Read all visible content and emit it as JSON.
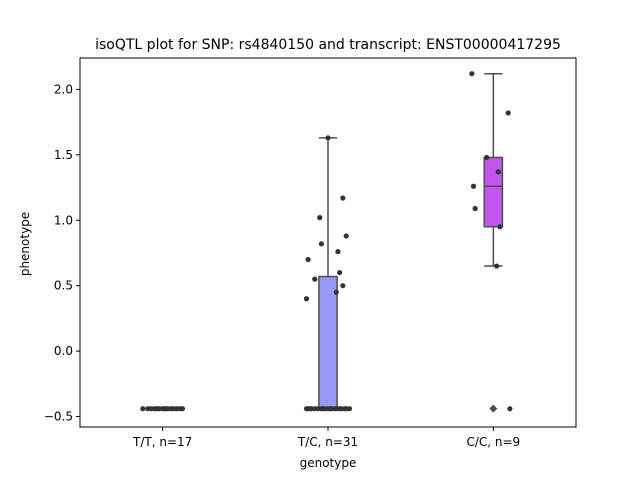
{
  "chart_data": {
    "type": "box",
    "title": "isoQTL plot for SNP: rs4840150 and transcript: ENST00000417295",
    "xlabel": "genotype",
    "ylabel": "phenotype",
    "ylim": [
      -0.58,
      2.24
    ],
    "yticks": [
      -0.5,
      0.0,
      0.5,
      1.0,
      1.5,
      2.0
    ],
    "ytick_labels": [
      "−0.5",
      "0.0",
      "0.5",
      "1.0",
      "1.5",
      "2.0"
    ],
    "grid": false,
    "legend": "none",
    "categories": [
      "T/T, n=17",
      "T/C, n=31",
      "C/C, n=9"
    ],
    "colors": {
      "box": [
        "#9999ff",
        "#9999f7",
        "#c056ee"
      ],
      "line": "#4d4d4d",
      "point": "#333333"
    },
    "groups": [
      {
        "label": "T/T, n=17",
        "q1": -0.44,
        "median": -0.44,
        "q3": -0.44,
        "whisker_low": -0.44,
        "whisker_high": -0.44,
        "outliers": [],
        "points": [
          {
            "x": -0.12,
            "y": -0.44
          },
          {
            "x": -0.09,
            "y": -0.44
          },
          {
            "x": -0.07,
            "y": -0.44
          },
          {
            "x": -0.05,
            "y": -0.44
          },
          {
            "x": -0.04,
            "y": -0.44
          },
          {
            "x": -0.03,
            "y": -0.44
          },
          {
            "x": -0.02,
            "y": -0.44
          },
          {
            "x": 0.0,
            "y": -0.44
          },
          {
            "x": 0.01,
            "y": -0.44
          },
          {
            "x": 0.02,
            "y": -0.44
          },
          {
            "x": 0.03,
            "y": -0.44
          },
          {
            "x": 0.05,
            "y": -0.44
          },
          {
            "x": 0.06,
            "y": -0.44
          },
          {
            "x": 0.08,
            "y": -0.44
          },
          {
            "x": 0.09,
            "y": -0.44
          },
          {
            "x": 0.11,
            "y": -0.44
          },
          {
            "x": 0.12,
            "y": -0.44
          }
        ]
      },
      {
        "label": "T/C, n=31",
        "q1": -0.44,
        "median": -0.44,
        "q3": 0.57,
        "whisker_low": -0.44,
        "whisker_high": 1.63,
        "outliers": [],
        "points": [
          {
            "x": 0.0,
            "y": 1.63
          },
          {
            "x": 0.09,
            "y": 1.17
          },
          {
            "x": -0.05,
            "y": 1.02
          },
          {
            "x": 0.11,
            "y": 0.88
          },
          {
            "x": -0.04,
            "y": 0.82
          },
          {
            "x": 0.06,
            "y": 0.76
          },
          {
            "x": -0.12,
            "y": 0.7
          },
          {
            "x": 0.07,
            "y": 0.6
          },
          {
            "x": -0.08,
            "y": 0.55
          },
          {
            "x": 0.09,
            "y": 0.5
          },
          {
            "x": 0.05,
            "y": 0.45
          },
          {
            "x": -0.13,
            "y": 0.4
          },
          {
            "x": -0.13,
            "y": -0.44
          },
          {
            "x": -0.12,
            "y": -0.44
          },
          {
            "x": -0.11,
            "y": -0.44
          },
          {
            "x": -0.1,
            "y": -0.44
          },
          {
            "x": -0.08,
            "y": -0.44
          },
          {
            "x": -0.06,
            "y": -0.44
          },
          {
            "x": -0.04,
            "y": -0.44
          },
          {
            "x": -0.03,
            "y": -0.44
          },
          {
            "x": -0.02,
            "y": -0.44
          },
          {
            "x": 0.0,
            "y": -0.44
          },
          {
            "x": 0.01,
            "y": -0.44
          },
          {
            "x": 0.02,
            "y": -0.44
          },
          {
            "x": 0.04,
            "y": -0.44
          },
          {
            "x": 0.05,
            "y": -0.44
          },
          {
            "x": 0.07,
            "y": -0.44
          },
          {
            "x": 0.08,
            "y": -0.44
          },
          {
            "x": 0.1,
            "y": -0.44
          },
          {
            "x": 0.11,
            "y": -0.44
          },
          {
            "x": 0.13,
            "y": -0.44
          }
        ]
      },
      {
        "label": "C/C, n=9",
        "q1": 0.95,
        "median": 1.26,
        "q3": 1.48,
        "whisker_low": 0.65,
        "whisker_high": 2.12,
        "outliers": [
          -0.44
        ],
        "points": [
          {
            "x": -0.13,
            "y": 2.12
          },
          {
            "x": 0.09,
            "y": 1.82
          },
          {
            "x": -0.04,
            "y": 1.48
          },
          {
            "x": 0.03,
            "y": 1.37
          },
          {
            "x": -0.12,
            "y": 1.26
          },
          {
            "x": -0.11,
            "y": 1.09
          },
          {
            "x": 0.04,
            "y": 0.95
          },
          {
            "x": 0.02,
            "y": 0.65
          },
          {
            "x": 0.1,
            "y": -0.44
          }
        ]
      }
    ]
  }
}
